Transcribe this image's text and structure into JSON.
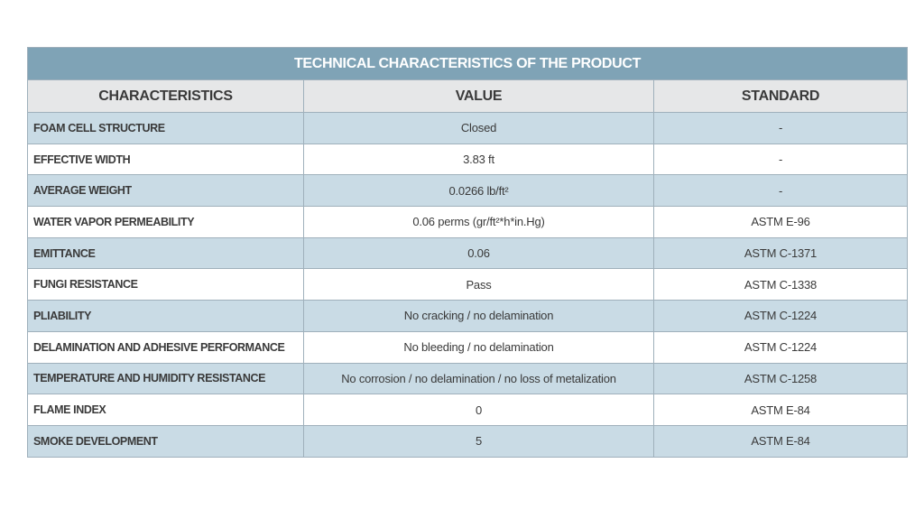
{
  "table": {
    "title": "TECHNICAL CHARACTERISTICS OF THE PRODUCT",
    "columns": [
      "CHARACTERISTICS",
      "VALUE",
      "STANDARD"
    ],
    "rows": [
      [
        "FOAM CELL STRUCTURE",
        "Closed",
        "-"
      ],
      [
        "EFFECTIVE WIDTH",
        "3.83 ft",
        "-"
      ],
      [
        "AVERAGE WEIGHT",
        "0.0266 lb/ft²",
        "-"
      ],
      [
        "WATER VAPOR PERMEABILITY",
        "0.06 perms (gr/ft²*h*in.Hg)",
        "ASTM E-96"
      ],
      [
        "EMITTANCE",
        "0.06",
        "ASTM C-1371"
      ],
      [
        "FUNGI RESISTANCE",
        "Pass",
        "ASTM C-1338"
      ],
      [
        "PLIABILITY",
        "No cracking / no delamination",
        "ASTM C-1224"
      ],
      [
        "DELAMINATION AND ADHESIVE PERFORMANCE",
        "No bleeding / no delamination",
        "ASTM C-1224"
      ],
      [
        "TEMPERATURE AND HUMIDITY RESISTANCE",
        "No corrosion / no delamination / no loss of metalization",
        "ASTM C-1258"
      ],
      [
        "FLAME INDEX",
        "0",
        "ASTM E-84"
      ],
      [
        "SMOKE DEVELOPMENT",
        "5",
        "ASTM E-84"
      ]
    ]
  }
}
